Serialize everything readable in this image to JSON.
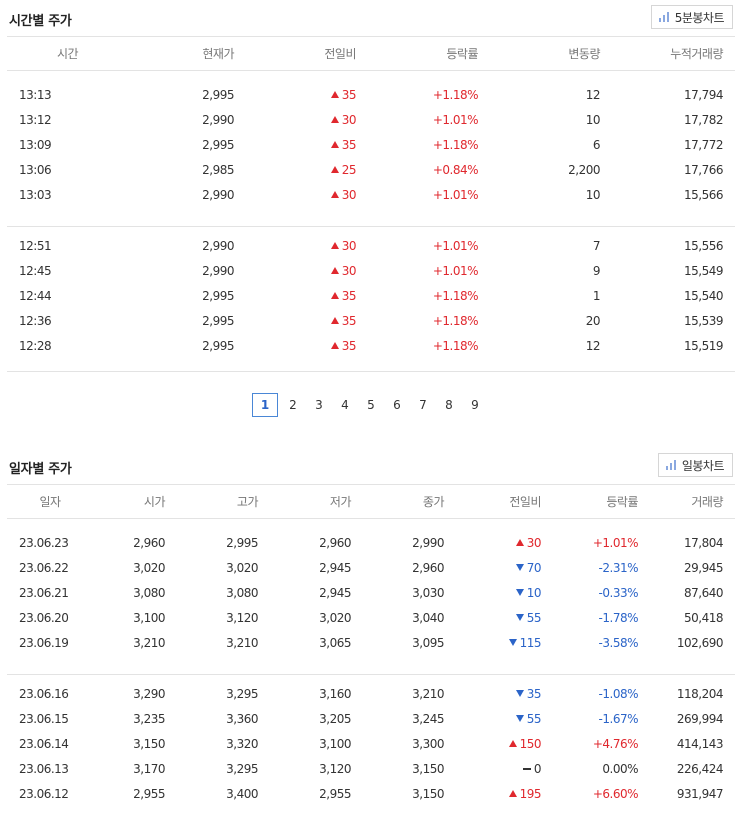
{
  "intraday": {
    "title": "시간별 주가",
    "chart_button": "5분봉차트",
    "headers": [
      "시간",
      "현재가",
      "전일비",
      "등락률",
      "변동량",
      "누적거래량"
    ],
    "rows": [
      {
        "time": "13:13",
        "price": "2,995",
        "dir": "up",
        "diff": "35",
        "rate": "+1.18%",
        "change": "12",
        "cum": "17,794"
      },
      {
        "time": "13:12",
        "price": "2,990",
        "dir": "up",
        "diff": "30",
        "rate": "+1.01%",
        "change": "10",
        "cum": "17,782"
      },
      {
        "time": "13:09",
        "price": "2,995",
        "dir": "up",
        "diff": "35",
        "rate": "+1.18%",
        "change": "6",
        "cum": "17,772"
      },
      {
        "time": "13:06",
        "price": "2,985",
        "dir": "up",
        "diff": "25",
        "rate": "+0.84%",
        "change": "2,200",
        "cum": "17,766"
      },
      {
        "time": "13:03",
        "price": "2,990",
        "dir": "up",
        "diff": "30",
        "rate": "+1.01%",
        "change": "10",
        "cum": "15,566"
      },
      {
        "time": "12:51",
        "price": "2,990",
        "dir": "up",
        "diff": "30",
        "rate": "+1.01%",
        "change": "7",
        "cum": "15,556"
      },
      {
        "time": "12:45",
        "price": "2,990",
        "dir": "up",
        "diff": "30",
        "rate": "+1.01%",
        "change": "9",
        "cum": "15,549"
      },
      {
        "time": "12:44",
        "price": "2,995",
        "dir": "up",
        "diff": "35",
        "rate": "+1.18%",
        "change": "1",
        "cum": "15,540"
      },
      {
        "time": "12:36",
        "price": "2,995",
        "dir": "up",
        "diff": "35",
        "rate": "+1.18%",
        "change": "20",
        "cum": "15,539"
      },
      {
        "time": "12:28",
        "price": "2,995",
        "dir": "up",
        "diff": "35",
        "rate": "+1.18%",
        "change": "12",
        "cum": "15,519"
      }
    ]
  },
  "pagination": {
    "pages": [
      "1",
      "2",
      "3",
      "4",
      "5",
      "6",
      "7",
      "8",
      "9"
    ],
    "current": "1"
  },
  "daily": {
    "title": "일자별 주가",
    "chart_button": "일봉차트",
    "headers": [
      "일자",
      "시가",
      "고가",
      "저가",
      "종가",
      "전일비",
      "등락률",
      "거래량"
    ],
    "rows": [
      {
        "date": "23.06.23",
        "open": "2,960",
        "high": "2,995",
        "low": "2,960",
        "close": "2,990",
        "dir": "up",
        "diff": "30",
        "rate": "+1.01%",
        "volume": "17,804"
      },
      {
        "date": "23.06.22",
        "open": "3,020",
        "high": "3,020",
        "low": "2,945",
        "close": "2,960",
        "dir": "down",
        "diff": "70",
        "rate": "-2.31%",
        "volume": "29,945"
      },
      {
        "date": "23.06.21",
        "open": "3,080",
        "high": "3,080",
        "low": "2,945",
        "close": "3,030",
        "dir": "down",
        "diff": "10",
        "rate": "-0.33%",
        "volume": "87,640"
      },
      {
        "date": "23.06.20",
        "open": "3,100",
        "high": "3,120",
        "low": "3,020",
        "close": "3,040",
        "dir": "down",
        "diff": "55",
        "rate": "-1.78%",
        "volume": "50,418"
      },
      {
        "date": "23.06.19",
        "open": "3,210",
        "high": "3,210",
        "low": "3,065",
        "close": "3,095",
        "dir": "down",
        "diff": "115",
        "rate": "-3.58%",
        "volume": "102,690"
      },
      {
        "date": "23.06.16",
        "open": "3,290",
        "high": "3,295",
        "low": "3,160",
        "close": "3,210",
        "dir": "down",
        "diff": "35",
        "rate": "-1.08%",
        "volume": "118,204"
      },
      {
        "date": "23.06.15",
        "open": "3,235",
        "high": "3,360",
        "low": "3,205",
        "close": "3,245",
        "dir": "down",
        "diff": "55",
        "rate": "-1.67%",
        "volume": "269,994"
      },
      {
        "date": "23.06.14",
        "open": "3,150",
        "high": "3,320",
        "low": "3,100",
        "close": "3,300",
        "dir": "up",
        "diff": "150",
        "rate": "+4.76%",
        "volume": "414,143"
      },
      {
        "date": "23.06.13",
        "open": "3,170",
        "high": "3,295",
        "low": "3,120",
        "close": "3,150",
        "dir": "flat",
        "diff": "0",
        "rate": "0.00%",
        "volume": "226,424"
      },
      {
        "date": "23.06.12",
        "open": "2,955",
        "high": "3,400",
        "low": "2,955",
        "close": "3,150",
        "dir": "up",
        "diff": "195",
        "rate": "+6.60%",
        "volume": "931,947"
      }
    ]
  },
  "colors": {
    "up": "#e0282e",
    "down": "#2b64c8",
    "accent": "#4a87d6"
  },
  "icons": {
    "chart_button": "bar-chart-icon",
    "up": "triangle-up-icon",
    "down": "triangle-down-icon",
    "flat": "dash-icon"
  }
}
